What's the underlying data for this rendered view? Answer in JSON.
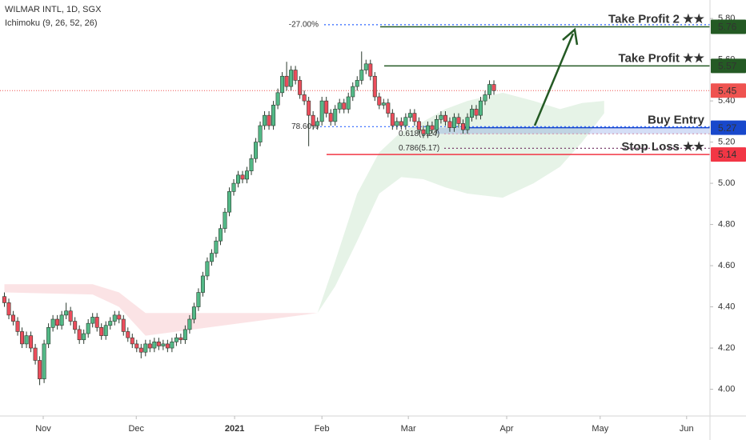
{
  "chart_data": {
    "type": "candlestick",
    "title": "WILMAR INTL, 1D, SGX",
    "subtitle": "Ichimoku (9, 26, 52, 26)",
    "up_color": "#53b987",
    "down_color": "#eb4d5c",
    "xlim": [
      -1,
      160
    ],
    "ylim": [
      3.87,
      5.89
    ],
    "xticks": [
      {
        "value": 8.8,
        "label": "Nov"
      },
      {
        "value": 29.9,
        "label": "Dec"
      },
      {
        "value": 52.2,
        "label": "2021"
      },
      {
        "value": 72.0,
        "label": "Feb"
      },
      {
        "value": 91.6,
        "label": "Mar"
      },
      {
        "value": 113.9,
        "label": "Apr"
      },
      {
        "value": 135.1,
        "label": "May"
      },
      {
        "value": 154.7,
        "label": "Jun"
      }
    ],
    "yticks": [
      {
        "value": 4.0,
        "label": "4.00"
      },
      {
        "value": 4.2,
        "label": "4.20"
      },
      {
        "value": 4.4,
        "label": "4.40"
      },
      {
        "value": 4.6,
        "label": "4.60"
      },
      {
        "value": 4.8,
        "label": "4.80"
      },
      {
        "value": 5.0,
        "label": "5.00"
      },
      {
        "value": 5.2,
        "label": "5.20"
      },
      {
        "value": 5.4,
        "label": "5.40"
      },
      {
        "value": 5.6,
        "label": "5.60"
      },
      {
        "value": 5.8,
        "label": "5.80"
      }
    ],
    "open": [
      4.45,
      4.42,
      4.36,
      4.33,
      4.28,
      4.22,
      4.26,
      4.2,
      4.14,
      4.05,
      4.22,
      4.3,
      4.34,
      4.31,
      4.36,
      4.38,
      4.33,
      4.29,
      4.24,
      4.27,
      4.32,
      4.35,
      4.3,
      4.26,
      4.31,
      4.33,
      4.36,
      4.34,
      4.28,
      4.25,
      4.22,
      4.2,
      4.18,
      4.22,
      4.2,
      4.23,
      4.21,
      4.22,
      4.2,
      4.23,
      4.25,
      4.24,
      4.29,
      4.34,
      4.4,
      4.47,
      4.55,
      4.62,
      4.66,
      4.72,
      4.78,
      4.86,
      4.96,
      5.0,
      5.04,
      5.02,
      5.06,
      5.12,
      5.2,
      5.28,
      5.33,
      5.28,
      5.38,
      5.44,
      5.52,
      5.47,
      5.55,
      5.5,
      5.43,
      5.4,
      5.33,
      5.28,
      5.3,
      5.4,
      5.34,
      5.3,
      5.36,
      5.39,
      5.36,
      5.42,
      5.47,
      5.5,
      5.55,
      5.58,
      5.52,
      5.42,
      5.38,
      5.39,
      5.34,
      5.28,
      5.3,
      5.28,
      5.32,
      5.34,
      5.3,
      5.26,
      5.24,
      5.28,
      5.26,
      5.31,
      5.33,
      5.3,
      5.27,
      5.32,
      5.29,
      5.26,
      5.32,
      5.36,
      5.33,
      5.4,
      5.43,
      5.48
    ],
    "high": [
      4.47,
      4.44,
      4.38,
      4.35,
      4.3,
      4.28,
      4.28,
      4.22,
      4.16,
      4.24,
      4.32,
      4.36,
      4.36,
      4.38,
      4.42,
      4.4,
      4.35,
      4.31,
      4.29,
      4.34,
      4.37,
      4.37,
      4.32,
      4.33,
      4.35,
      4.38,
      4.38,
      4.36,
      4.3,
      4.27,
      4.24,
      4.22,
      4.24,
      4.24,
      4.25,
      4.25,
      4.24,
      4.24,
      4.25,
      4.27,
      4.27,
      4.31,
      4.36,
      4.42,
      4.49,
      4.57,
      4.64,
      4.68,
      4.74,
      4.8,
      4.88,
      4.98,
      5.02,
      5.06,
      5.06,
      5.08,
      5.14,
      5.22,
      5.3,
      5.35,
      5.35,
      5.4,
      5.46,
      5.54,
      5.59,
      5.57,
      5.57,
      5.52,
      5.45,
      5.42,
      5.35,
      5.32,
      5.42,
      5.42,
      5.36,
      5.38,
      5.41,
      5.41,
      5.44,
      5.49,
      5.52,
      5.64,
      5.6,
      5.6,
      5.54,
      5.44,
      5.41,
      5.41,
      5.36,
      5.32,
      5.32,
      5.34,
      5.36,
      5.36,
      5.32,
      5.28,
      5.3,
      5.3,
      5.33,
      5.35,
      5.35,
      5.32,
      5.34,
      5.34,
      5.31,
      5.34,
      5.38,
      5.38,
      5.42,
      5.45,
      5.5,
      5.5
    ],
    "low": [
      4.4,
      4.34,
      4.31,
      4.26,
      4.2,
      4.2,
      4.18,
      4.12,
      4.02,
      4.03,
      4.2,
      4.28,
      4.29,
      4.29,
      4.34,
      4.31,
      4.27,
      4.22,
      4.22,
      4.25,
      4.3,
      4.28,
      4.24,
      4.24,
      4.29,
      4.31,
      4.32,
      4.26,
      4.23,
      4.2,
      4.18,
      4.15,
      4.16,
      4.18,
      4.18,
      4.19,
      4.19,
      4.18,
      4.18,
      4.21,
      4.22,
      4.22,
      4.27,
      4.32,
      4.38,
      4.45,
      4.53,
      4.6,
      4.64,
      4.7,
      4.76,
      4.84,
      4.94,
      4.98,
      5.0,
      5.0,
      5.04,
      5.1,
      5.18,
      5.26,
      5.26,
      5.26,
      5.36,
      5.42,
      5.45,
      5.45,
      5.48,
      5.41,
      5.38,
      5.18,
      5.26,
      5.26,
      5.28,
      5.32,
      5.28,
      5.28,
      5.34,
      5.34,
      5.34,
      5.4,
      5.45,
      5.48,
      5.53,
      5.5,
      5.4,
      5.36,
      5.36,
      5.32,
      5.26,
      5.26,
      5.26,
      5.26,
      5.3,
      5.28,
      5.24,
      5.22,
      5.22,
      5.24,
      5.24,
      5.29,
      5.28,
      5.25,
      5.25,
      5.27,
      5.24,
      5.24,
      5.3,
      5.31,
      5.31,
      5.38,
      5.41,
      5.43
    ],
    "close": [
      4.42,
      4.36,
      4.33,
      4.28,
      4.22,
      4.26,
      4.2,
      4.14,
      4.05,
      4.22,
      4.3,
      4.34,
      4.31,
      4.36,
      4.38,
      4.33,
      4.29,
      4.24,
      4.27,
      4.32,
      4.35,
      4.3,
      4.26,
      4.31,
      4.33,
      4.36,
      4.34,
      4.28,
      4.25,
      4.22,
      4.2,
      4.18,
      4.22,
      4.2,
      4.23,
      4.21,
      4.22,
      4.2,
      4.23,
      4.25,
      4.24,
      4.29,
      4.34,
      4.4,
      4.47,
      4.55,
      4.62,
      4.66,
      4.72,
      4.78,
      4.86,
      4.96,
      5.0,
      5.04,
      5.02,
      5.06,
      5.12,
      5.2,
      5.28,
      5.33,
      5.28,
      5.38,
      5.44,
      5.52,
      5.47,
      5.55,
      5.5,
      5.43,
      5.4,
      5.33,
      5.28,
      5.3,
      5.4,
      5.34,
      5.3,
      5.36,
      5.39,
      5.36,
      5.42,
      5.47,
      5.5,
      5.55,
      5.58,
      5.52,
      5.42,
      5.38,
      5.39,
      5.34,
      5.28,
      5.3,
      5.28,
      5.32,
      5.34,
      5.3,
      5.26,
      5.24,
      5.28,
      5.26,
      5.31,
      5.33,
      5.3,
      5.27,
      5.32,
      5.29,
      5.26,
      5.32,
      5.36,
      5.33,
      5.4,
      5.43,
      5.48,
      5.45
    ],
    "cloud": [
      {
        "color": "#fbe3e5",
        "x": [
          0,
          20,
          26,
          32,
          71
        ],
        "upper": [
          4.51,
          4.51,
          4.47,
          4.37,
          4.37
        ],
        "lower": [
          4.47,
          4.46,
          4.4,
          4.26,
          4.37
        ]
      },
      {
        "color": "#e6f3e7",
        "x": [
          71,
          75,
          80,
          85,
          90,
          95,
          100,
          105,
          113,
          120,
          126,
          131,
          136
        ],
        "upper": [
          4.37,
          4.62,
          4.95,
          5.15,
          5.25,
          5.3,
          5.36,
          5.4,
          5.44,
          5.4,
          5.36,
          5.39,
          5.4
        ],
        "lower": [
          4.37,
          4.5,
          4.72,
          4.95,
          5.03,
          5.02,
          4.98,
          4.95,
          4.93,
          5.0,
          5.08,
          5.2,
          5.34
        ]
      }
    ],
    "levels": [
      {
        "value": 5.76,
        "color": "#245a24",
        "annotation": "Take Profit 2 ★★"
      },
      {
        "value": 5.57,
        "color": "#245a24",
        "annotation": "Take Profit ★★"
      },
      {
        "value": 5.45,
        "color": "#ef5350"
      },
      {
        "value": 5.27,
        "color": "#1848cc",
        "annotation": "Buy Entry"
      },
      {
        "value": 5.14,
        "color": "#f23645",
        "annotation": "Stop Loss ★★"
      }
    ],
    "fib": [
      {
        "label": "-27.00%",
        "value": 5.77,
        "color": "#2962ff"
      },
      {
        "label": "78.60%",
        "value": 5.275,
        "color": "#2962ff"
      },
      {
        "label": "0.618(5.24)",
        "value": 5.24,
        "color": "#e8a0ae"
      },
      {
        "label": "0.786(5.17)",
        "value": 5.17,
        "color": "#7b3f6e"
      }
    ]
  }
}
